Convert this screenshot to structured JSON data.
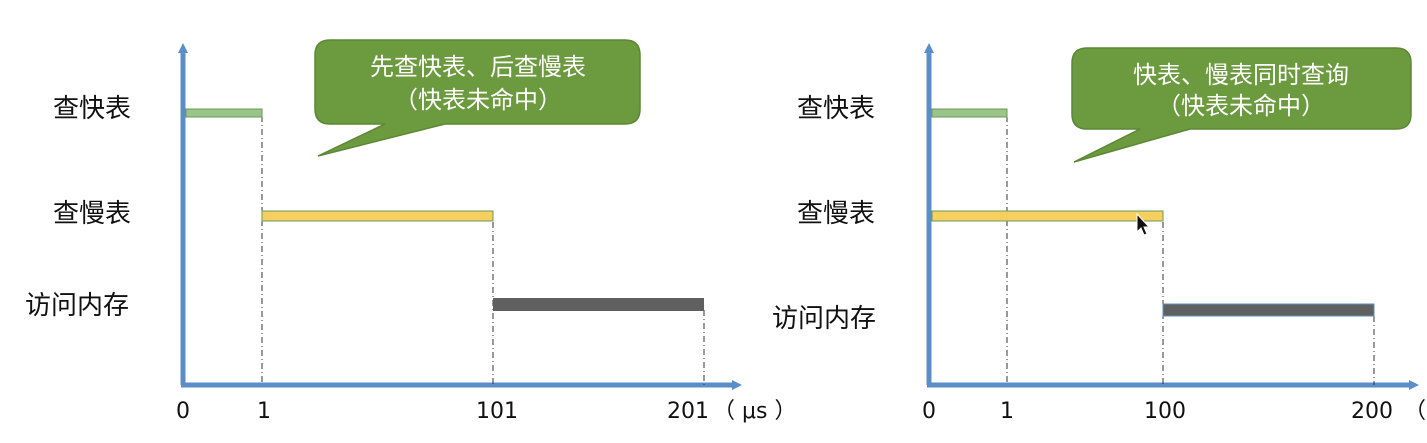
{
  "colors": {
    "axis": "#5b8ec7",
    "fast_bar": "#9bc48a",
    "slow_bar": "#f7cf5e",
    "memory_bar": "#606060",
    "callout_fill": "#6c9a3e",
    "callout_stroke": "#5d8735"
  },
  "diagrams": [
    {
      "row_labels": {
        "fast": "查快表",
        "slow": "查慢表",
        "memory": "访问内存"
      },
      "callout": {
        "line1": "先查快表、后查慢表",
        "line2": "（快表未命中）"
      },
      "ticks": [
        "0",
        "1",
        "101",
        "201"
      ],
      "unit": "（ μs ）",
      "bars": [
        {
          "row": "fast",
          "start": 0,
          "end": 1
        },
        {
          "row": "slow",
          "start": 1,
          "end": 101
        },
        {
          "row": "memory",
          "start": 101,
          "end": 201
        }
      ]
    },
    {
      "row_labels": {
        "fast": "查快表",
        "slow": "查慢表",
        "memory": "访问内存"
      },
      "callout": {
        "line1": "快表、慢表同时查询",
        "line2": "（快表未命中）"
      },
      "ticks": [
        "0",
        "1",
        "100",
        "200"
      ],
      "unit": "（",
      "bars": [
        {
          "row": "fast",
          "start": 0,
          "end": 1
        },
        {
          "row": "slow",
          "start": 0,
          "end": 100
        },
        {
          "row": "memory",
          "start": 100,
          "end": 200
        }
      ]
    }
  ]
}
